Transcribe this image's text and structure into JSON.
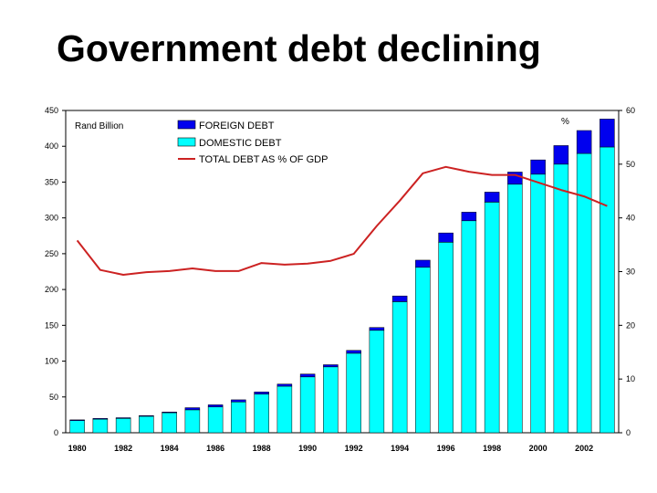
{
  "slide": {
    "title": "Government debt declining"
  },
  "chart_data": {
    "type": "bar",
    "left_unit_label": "Rand Billion",
    "right_unit_label": "%",
    "x": [
      1980,
      1981,
      1982,
      1983,
      1984,
      1985,
      1986,
      1987,
      1988,
      1989,
      1990,
      1991,
      1992,
      1993,
      1994,
      1995,
      1996,
      1997,
      1998,
      1999,
      2000,
      2001,
      2002,
      2003
    ],
    "x_tick_labels": [
      "1980",
      "1982",
      "1984",
      "1986",
      "1988",
      "1990",
      "1992",
      "1994",
      "1996",
      "1998",
      "2000",
      "2002"
    ],
    "stacked": true,
    "series": [
      {
        "name": "DOMESTIC DEBT",
        "type": "bar",
        "axis": "left",
        "color": "#00ffff",
        "values": [
          17,
          19,
          20,
          23,
          28,
          32,
          36,
          43,
          54,
          65,
          78,
          92,
          111,
          143,
          183,
          231,
          266,
          296,
          322,
          347,
          361,
          375,
          390,
          399
        ]
      },
      {
        "name": "FOREIGN DEBT",
        "type": "bar",
        "axis": "left",
        "color": "#0000ee",
        "values": [
          1,
          1,
          1,
          1,
          1,
          3,
          3,
          3,
          3,
          3,
          4,
          3,
          4,
          4,
          8,
          10,
          13,
          12,
          14,
          17,
          20,
          26,
          32,
          39
        ]
      },
      {
        "name": "TOTAL DEBT AS % OF GDP",
        "type": "line",
        "axis": "right",
        "color": "#cc2222",
        "values": [
          35.8,
          30.3,
          29.4,
          29.9,
          30.1,
          30.6,
          30.1,
          30.1,
          31.6,
          31.3,
          31.5,
          32.0,
          33.3,
          38.5,
          43.2,
          48.3,
          49.5,
          48.6,
          48.0,
          48.0,
          46.6,
          45.2,
          44.0,
          42.2
        ]
      }
    ],
    "y_left": {
      "min": 0,
      "max": 450,
      "ticks": [
        "0",
        "50",
        "100",
        "150",
        "200",
        "250",
        "300",
        "350",
        "400",
        "450"
      ]
    },
    "y_right": {
      "min": 0,
      "max": 60,
      "ticks": [
        "0",
        "10",
        "20",
        "30",
        "40",
        "50",
        "60"
      ]
    },
    "legend": {
      "position": "top-left",
      "items": [
        {
          "label": "FOREIGN DEBT",
          "swatch": "bar",
          "color": "#0000ee"
        },
        {
          "label": "DOMESTIC DEBT",
          "swatch": "bar",
          "color": "#00ffff"
        },
        {
          "label": "TOTAL DEBT AS % OF GDP",
          "swatch": "line",
          "color": "#cc2222"
        }
      ]
    },
    "grid": false
  }
}
